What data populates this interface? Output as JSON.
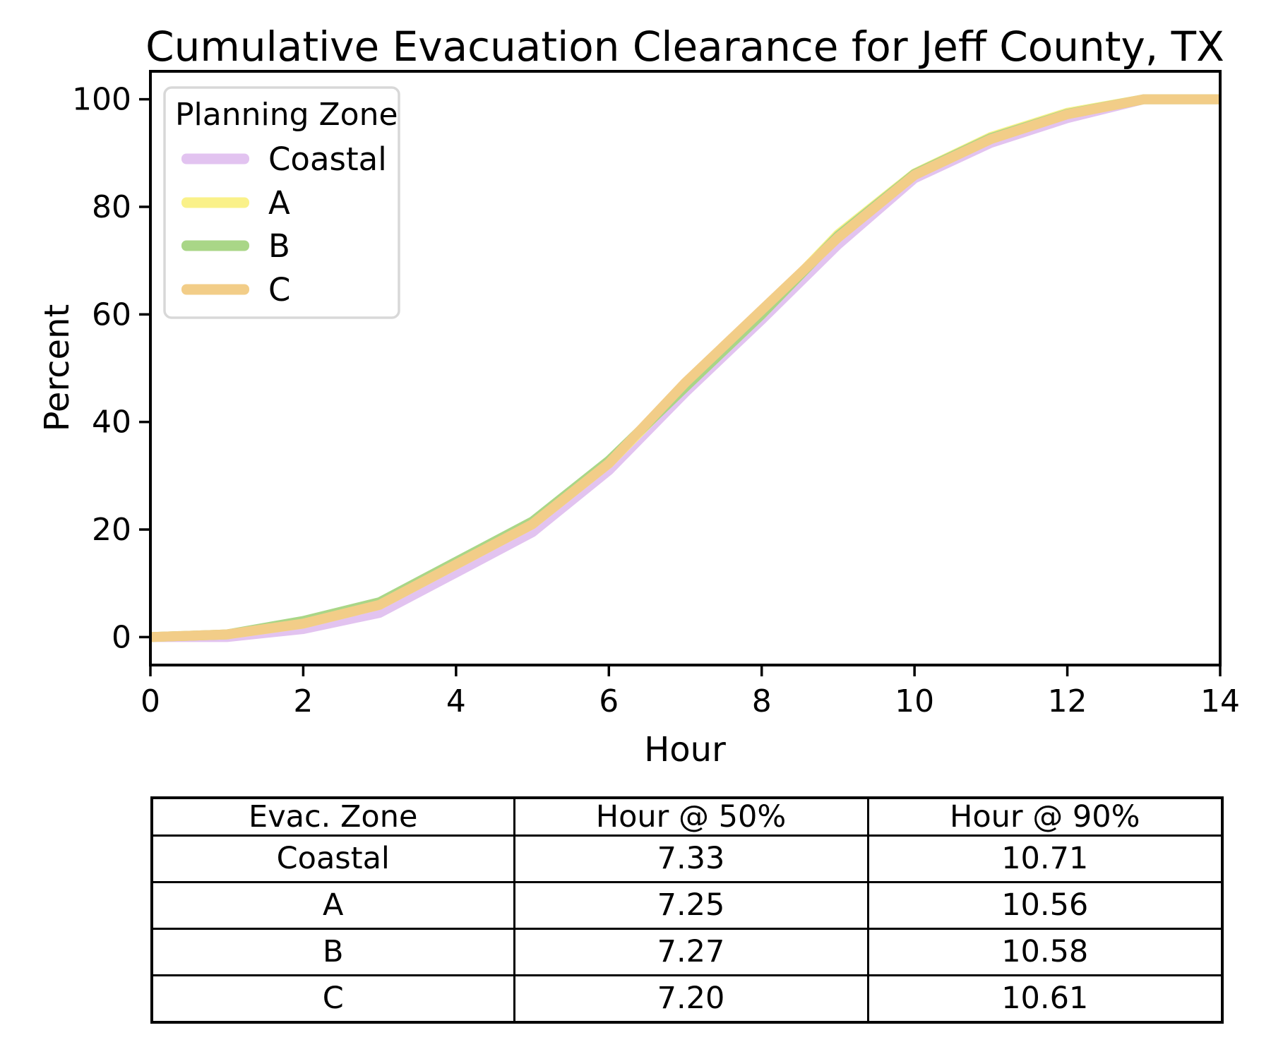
{
  "chart_data": {
    "type": "line",
    "title": "Cumulative Evacuation Clearance for Jeff County, TX",
    "xlabel": "Hour",
    "ylabel": "Percent",
    "xlim": [
      0,
      14
    ],
    "ylim": [
      0,
      100
    ],
    "xticks": [
      "0",
      "2",
      "4",
      "6",
      "8",
      "10",
      "12",
      "14"
    ],
    "yticks": [
      "0",
      "20",
      "40",
      "60",
      "80",
      "100"
    ],
    "grid": false,
    "legend_title": "Planning Zone",
    "legend_position": "upper left",
    "x": [
      0,
      1,
      2,
      3,
      4,
      5,
      6,
      7,
      8,
      9,
      10,
      11,
      12,
      13,
      14
    ],
    "series": [
      {
        "name": "Coastal",
        "color": "#E2C3F0",
        "values": [
          0,
          0,
          1.5,
          4.5,
          12,
          19.5,
          31,
          45.5,
          59,
          73,
          85.3,
          91.9,
          96.5,
          100,
          100
        ]
      },
      {
        "name": "A",
        "color": "#FAF189",
        "values": [
          0,
          0.5,
          2.5,
          6.0,
          13.5,
          21,
          32.3,
          46.8,
          60,
          74.9,
          86.2,
          93,
          97.5,
          100,
          100
        ]
      },
      {
        "name": "B",
        "color": "#A9D687",
        "values": [
          0,
          0.5,
          3.0,
          6.5,
          14,
          21.5,
          32.8,
          46.5,
          60,
          74.6,
          86.1,
          92.8,
          97.3,
          100,
          100
        ]
      },
      {
        "name": "C",
        "color": "#F2CD88",
        "values": [
          0,
          0.5,
          2.5,
          6.0,
          13.5,
          21,
          32.3,
          47.3,
          60.8,
          74.3,
          85.9,
          92.6,
          97.2,
          100,
          100
        ]
      }
    ]
  },
  "table": {
    "headers": [
      "Evac. Zone",
      "Hour @ 50%",
      "Hour @ 90%"
    ],
    "rows": [
      [
        "Coastal",
        "7.33",
        "10.71"
      ],
      [
        "A",
        "7.25",
        "10.56"
      ],
      [
        "B",
        "7.27",
        "10.58"
      ],
      [
        "C",
        "7.20",
        "10.61"
      ]
    ]
  },
  "style": {
    "spine_color": "#000000",
    "legend_border_color": "#D8D8D8",
    "background": "#ffffff"
  }
}
